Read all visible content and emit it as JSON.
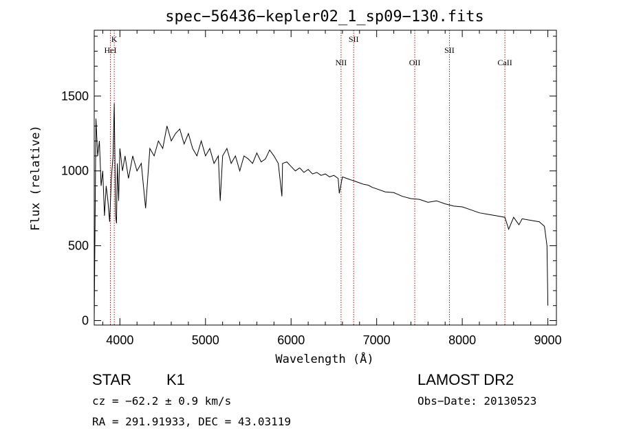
{
  "chart_data": {
    "type": "line",
    "title": "spec−56436−kepler02_1_sp09−130.fits",
    "xlabel": "Wavelength (Å)",
    "ylabel": "Flux (relative)",
    "xlim": [
      3700,
      9100
    ],
    "ylim": [
      -30,
      1940
    ],
    "xticks": [
      4000,
      5000,
      6000,
      7000,
      8000,
      9000
    ],
    "yticks": [
      0,
      500,
      1000,
      1500
    ],
    "grid": false,
    "lines": [
      {
        "name": "K",
        "x": 3934,
        "level": 0
      },
      {
        "name": "HeI",
        "x": 3889,
        "level": 1
      },
      {
        "name": "SII",
        "x": 6731,
        "level": 0
      },
      {
        "name": "NII",
        "x": 6584,
        "level": 2
      },
      {
        "name": "OII",
        "x": 7445,
        "level": 2
      },
      {
        "name": "SII",
        "x": 7850,
        "level": 1
      },
      {
        "name": "CaII",
        "x": 8498,
        "level": 2
      }
    ],
    "series": [
      {
        "x": [
          3700,
          3720,
          3740,
          3760,
          3780,
          3800,
          3820,
          3840,
          3860,
          3880,
          3900,
          3920,
          3934,
          3950,
          3960,
          3970,
          3985,
          4000,
          4030,
          4060,
          4100,
          4150,
          4200,
          4250,
          4300,
          4350,
          4400,
          4450,
          4500,
          4550,
          4600,
          4650,
          4700,
          4750,
          4800,
          4850,
          4900,
          4950,
          5000,
          5050,
          5100,
          5150,
          5172,
          5200,
          5250,
          5300,
          5350,
          5400,
          5450,
          5500,
          5550,
          5600,
          5650,
          5700,
          5750,
          5800,
          5850,
          5893,
          5900,
          5950,
          6000,
          6050,
          6100,
          6150,
          6200,
          6250,
          6300,
          6350,
          6400,
          6450,
          6500,
          6550,
          6563,
          6600,
          6650,
          6700,
          6750,
          6800,
          6850,
          6900,
          6950,
          7000,
          7100,
          7200,
          7300,
          7400,
          7500,
          7600,
          7700,
          7800,
          7900,
          8000,
          8100,
          8200,
          8300,
          8400,
          8498,
          8542,
          8600,
          8662,
          8700,
          8800,
          8900,
          8960,
          8990,
          9000
        ],
        "y": [
          0,
          1350,
          1100,
          1200,
          900,
          1000,
          700,
          900,
          800,
          660,
          950,
          1100,
          1450,
          700,
          650,
          1050,
          800,
          1150,
          1000,
          1100,
          950,
          1100,
          1000,
          1050,
          750,
          1150,
          1100,
          1200,
          1150,
          1300,
          1200,
          1250,
          1280,
          1180,
          1250,
          1150,
          1100,
          1200,
          1100,
          1150,
          1050,
          1100,
          800,
          1100,
          1150,
          1050,
          1100,
          1000,
          1100,
          1080,
          1050,
          1120,
          1060,
          1080,
          1140,
          1100,
          1050,
          830,
          1050,
          1060,
          1030,
          1000,
          1020,
          990,
          1010,
          980,
          990,
          970,
          980,
          960,
          970,
          950,
          850,
          960,
          950,
          940,
          930,
          920,
          910,
          905,
          890,
          880,
          860,
          855,
          830,
          815,
          810,
          790,
          800,
          780,
          765,
          760,
          740,
          720,
          710,
          700,
          690,
          610,
          690,
          640,
          680,
          670,
          660,
          630,
          500,
          100
        ]
      }
    ]
  },
  "info": {
    "object_type": "STAR",
    "subclass": "K1",
    "survey": "LAMOST DR2",
    "cz": "cz = −62.2 ± 0.9 km/s",
    "obs_date": "Obs−Date: 20130523",
    "coords": "RA = 291.91933, DEC =  43.03119"
  }
}
